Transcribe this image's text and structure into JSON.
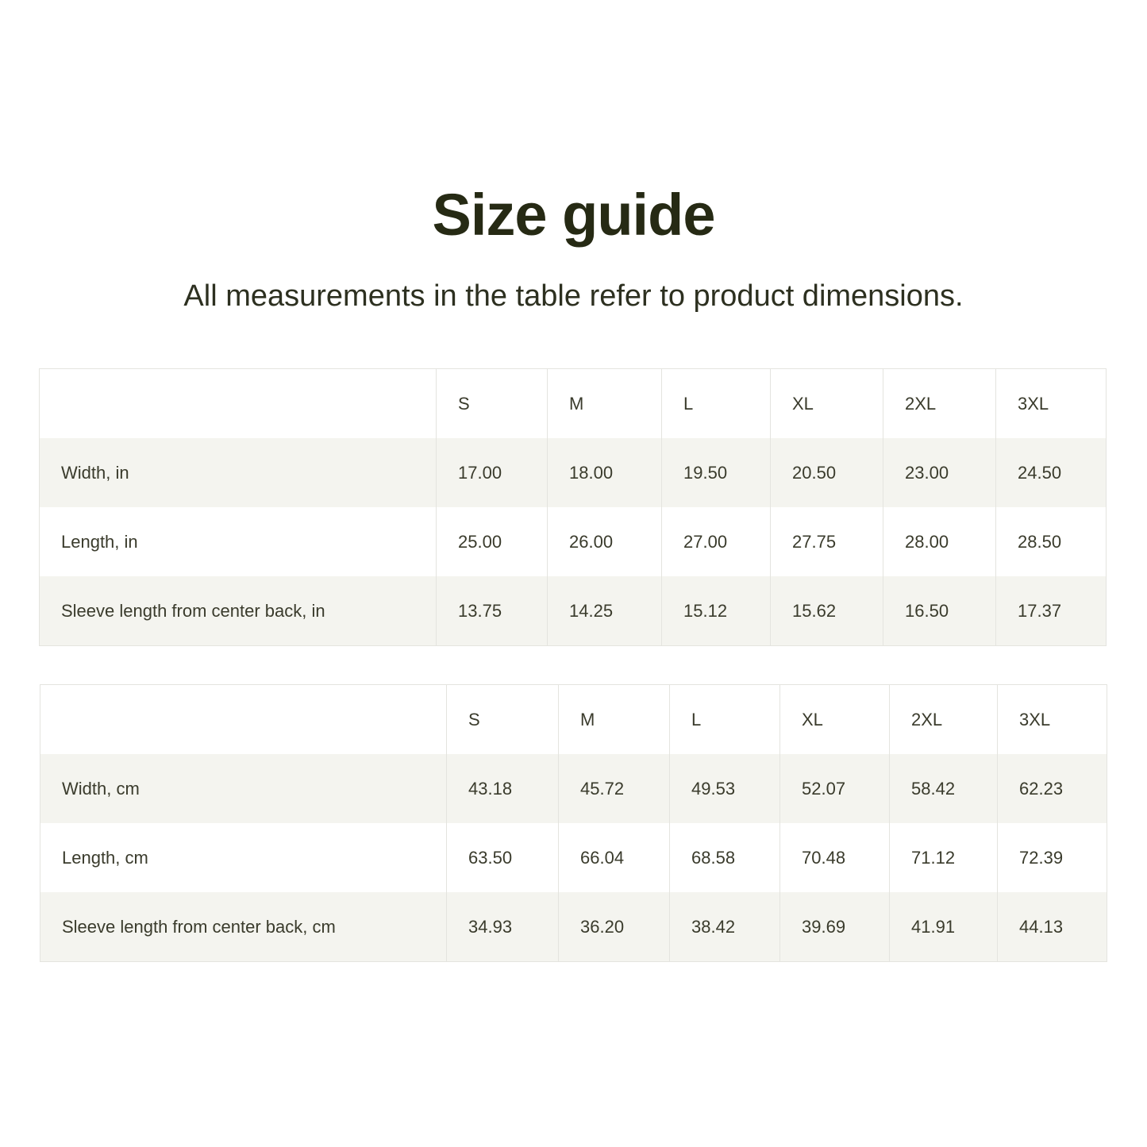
{
  "header": {
    "title": "Size guide",
    "subtitle": "All measurements in the table refer to product dimensions."
  },
  "colors": {
    "title": "#262a14",
    "stripe": "#f4f4ef",
    "border": "#e4e4df"
  },
  "tables": [
    {
      "columns": [
        "",
        "S",
        "M",
        "L",
        "XL",
        "2XL",
        "3XL"
      ],
      "rows": [
        {
          "label": "Width, in",
          "values": [
            "17.00",
            "18.00",
            "19.50",
            "20.50",
            "23.00",
            "24.50"
          ]
        },
        {
          "label": "Length, in",
          "values": [
            "25.00",
            "26.00",
            "27.00",
            "27.75",
            "28.00",
            "28.50"
          ]
        },
        {
          "label": "Sleeve length from center back, in",
          "values": [
            "13.75",
            "14.25",
            "15.12",
            "15.62",
            "16.50",
            "17.37"
          ]
        }
      ]
    },
    {
      "columns": [
        "",
        "S",
        "M",
        "L",
        "XL",
        "2XL",
        "3XL"
      ],
      "rows": [
        {
          "label": "Width, cm",
          "values": [
            "43.18",
            "45.72",
            "49.53",
            "52.07",
            "58.42",
            "62.23"
          ]
        },
        {
          "label": "Length, cm",
          "values": [
            "63.50",
            "66.04",
            "68.58",
            "70.48",
            "71.12",
            "72.39"
          ]
        },
        {
          "label": "Sleeve length from center back, cm",
          "values": [
            "34.93",
            "36.20",
            "38.42",
            "39.69",
            "41.91",
            "44.13"
          ]
        }
      ]
    }
  ]
}
